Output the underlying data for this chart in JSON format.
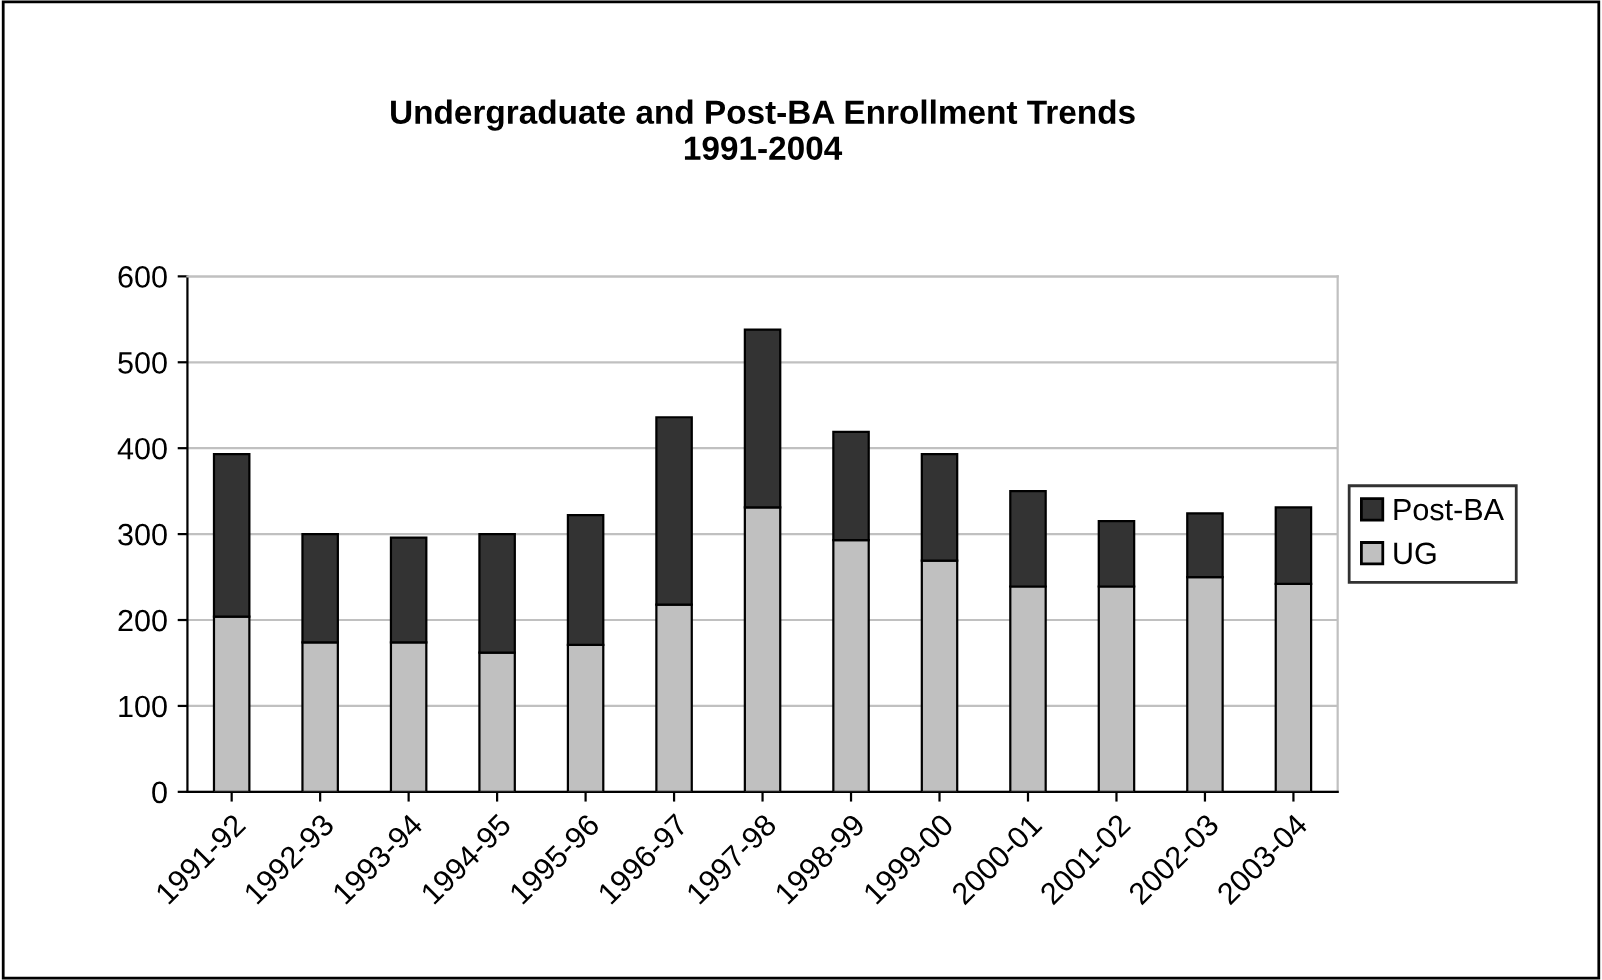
{
  "chart_data": {
    "type": "bar",
    "title": "Undergraduate and Post-BA Enrollment Trends\n1991-2004",
    "stacked": true,
    "categories": [
      "1991-92",
      "1992-93",
      "1993-94",
      "1994-95",
      "1995-96",
      "1996-97",
      "1997-98",
      "1998-99",
      "1999-00",
      "2000-01",
      "2001-02",
      "2002-03",
      "2003-04"
    ],
    "series": [
      {
        "name": "UG",
        "color": "#c0c0c0",
        "values": [
          204,
          174,
          174,
          162,
          171,
          218,
          331,
          293,
          269,
          239,
          239,
          250,
          242
        ]
      },
      {
        "name": "Post-BA",
        "color": "#333333",
        "values": [
          189,
          126,
          122,
          138,
          151,
          218,
          207,
          126,
          124,
          111,
          76,
          74,
          89
        ]
      }
    ],
    "ylim": [
      0,
      600
    ],
    "yticks": [
      0,
      100,
      200,
      300,
      400,
      500,
      600
    ],
    "grid": "y",
    "legend": "right"
  }
}
